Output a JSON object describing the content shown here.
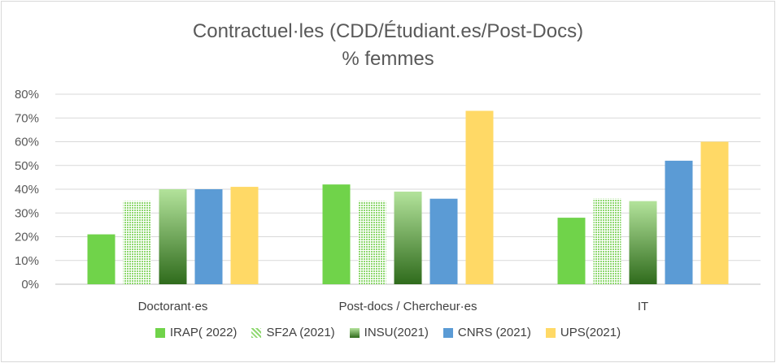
{
  "chart_data": {
    "type": "bar",
    "title": "Contractuel·les  (CDD/Étudiant.es/Post-Docs)",
    "subtitle": "% femmes",
    "categories": [
      "Doctorant·es",
      "Post-docs / Chercheur·es",
      "IT"
    ],
    "series": [
      {
        "name": "IRAP( 2022)",
        "values": [
          21,
          42,
          28
        ],
        "color": "#70d34a",
        "pattern": "solid"
      },
      {
        "name": "SF2A (2021)",
        "values": [
          35,
          35,
          36
        ],
        "color": "#8fd870",
        "pattern": "dotted"
      },
      {
        "name": "INSU(2021)",
        "values": [
          40,
          39,
          35
        ],
        "color": "#5aa83a",
        "pattern": "gradient"
      },
      {
        "name": "CNRS (2021)",
        "values": [
          40,
          36,
          52
        ],
        "color": "#5b9bd5",
        "pattern": "solid"
      },
      {
        "name": "UPS(2021)",
        "values": [
          41,
          73,
          60
        ],
        "color": "#ffd966",
        "pattern": "solid"
      }
    ],
    "ylim": [
      0,
      80
    ],
    "yticks": [
      "0%",
      "10%",
      "20%",
      "30%",
      "40%",
      "50%",
      "60%",
      "70%",
      "80%"
    ],
    "grid": true,
    "legend": "bottom"
  }
}
